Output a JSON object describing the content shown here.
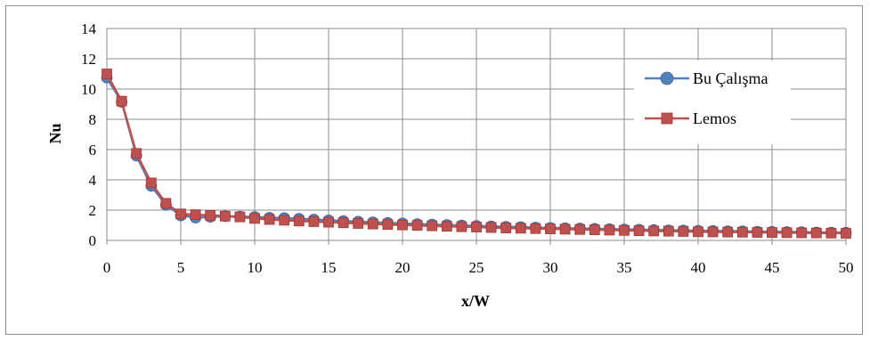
{
  "chart_data": {
    "type": "line",
    "title": "",
    "xlabel": "x/W",
    "ylabel": "Nu",
    "xlim": [
      0,
      50
    ],
    "ylim": [
      0,
      14
    ],
    "x_ticks": [
      "0",
      "5",
      "10",
      "15",
      "20",
      "25",
      "30",
      "35",
      "40",
      "45",
      "50"
    ],
    "y_ticks": [
      "0",
      "2",
      "4",
      "6",
      "8",
      "10",
      "12",
      "14"
    ],
    "grid": true,
    "legend_position": "right",
    "series": [
      {
        "name": "Bu Çalışma",
        "color": "#4f81bd",
        "marker": "circle",
        "x": [
          0,
          1,
          2,
          3,
          4,
          5,
          6,
          7,
          8,
          9,
          10,
          11,
          12,
          13,
          14,
          15,
          16,
          17,
          18,
          19,
          20,
          21,
          22,
          23,
          24,
          25,
          26,
          27,
          28,
          29,
          30,
          31,
          32,
          33,
          34,
          35,
          36,
          37,
          38,
          39,
          40,
          41,
          42,
          43,
          44,
          45,
          46,
          47,
          48,
          49,
          50
        ],
        "y": [
          10.75,
          9.15,
          5.6,
          3.6,
          2.35,
          1.65,
          1.5,
          1.55,
          1.6,
          1.58,
          1.55,
          1.5,
          1.48,
          1.43,
          1.38,
          1.33,
          1.28,
          1.24,
          1.2,
          1.16,
          1.12,
          1.08,
          1.05,
          1.02,
          0.99,
          0.96,
          0.93,
          0.9,
          0.88,
          0.85,
          0.83,
          0.81,
          0.79,
          0.77,
          0.75,
          0.73,
          0.71,
          0.69,
          0.67,
          0.66,
          0.64,
          0.63,
          0.61,
          0.6,
          0.58,
          0.57,
          0.56,
          0.55,
          0.53,
          0.52,
          0.51
        ]
      },
      {
        "name": "Lemos",
        "color": "#c0504d",
        "marker": "square",
        "x": [
          0,
          1,
          2,
          3,
          4,
          5,
          6,
          7,
          8,
          9,
          10,
          11,
          12,
          13,
          14,
          15,
          16,
          17,
          18,
          19,
          20,
          21,
          22,
          23,
          24,
          25,
          26,
          27,
          28,
          29,
          30,
          31,
          32,
          33,
          34,
          35,
          36,
          37,
          38,
          39,
          40,
          41,
          42,
          43,
          44,
          45,
          46,
          47,
          48,
          49,
          50
        ],
        "y": [
          11.0,
          9.2,
          5.75,
          3.8,
          2.45,
          1.75,
          1.7,
          1.65,
          1.6,
          1.55,
          1.45,
          1.38,
          1.33,
          1.28,
          1.24,
          1.2,
          1.16,
          1.12,
          1.08,
          1.05,
          1.02,
          0.99,
          0.96,
          0.93,
          0.9,
          0.88,
          0.85,
          0.82,
          0.8,
          0.78,
          0.76,
          0.74,
          0.72,
          0.7,
          0.68,
          0.66,
          0.64,
          0.62,
          0.61,
          0.59,
          0.57,
          0.56,
          0.55,
          0.54,
          0.53,
          0.52,
          0.51,
          0.5,
          0.49,
          0.48,
          0.47
        ]
      }
    ]
  }
}
